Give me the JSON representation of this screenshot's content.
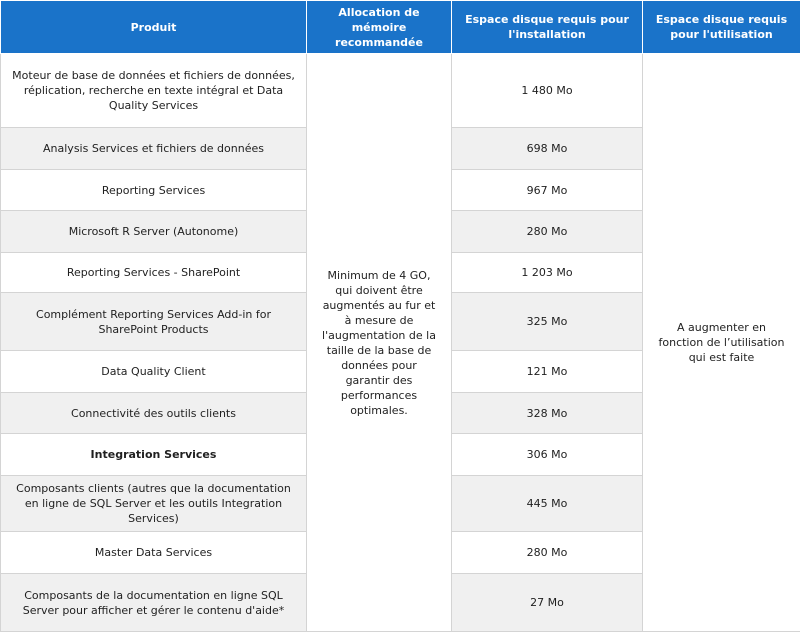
{
  "table": {
    "headers": [
      "Produit",
      "Allocation de mémoire recommandée",
      "Espace disque requis pour l'installation",
      "Espace disque requis pour l'utilisation"
    ],
    "memory_note": "Minimum de 4 GO, qui doivent être augmentés au fur et à mesure de l'augmentation de la taille de la base de données pour garantir des performances optimales.",
    "usage_note": "A augmenter en fonction de l’utilisation qui est faite",
    "rows": [
      {
        "product": "Moteur de base de données et fichiers de données, réplication, recherche en texte intégral et Data Quality Services",
        "install": "1 480 Mo"
      },
      {
        "product": "Analysis Services et fichiers de données",
        "install": "698 Mo"
      },
      {
        "product": "Reporting Services",
        "install": "967 Mo"
      },
      {
        "product": "Microsoft R Server (Autonome)",
        "install": "280 Mo"
      },
      {
        "product": "Reporting Services - SharePoint",
        "install": "1 203 Mo"
      },
      {
        "product": "Complément Reporting Services Add-in for SharePoint Products",
        "install": "325 Mo"
      },
      {
        "product": "Data Quality Client",
        "install": "121 Mo"
      },
      {
        "product": "Connectivité des outils clients",
        "install": "328 Mo"
      },
      {
        "product": "Integration Services",
        "install": "306 Mo"
      },
      {
        "product": "Composants clients (autres que la documentation en ligne de SQL Server et les outils Integration Services)",
        "install": "445 Mo"
      },
      {
        "product": "Master Data Services",
        "install": "280 Mo"
      },
      {
        "product": "Composants de la documentation en ligne SQL Server pour afficher et gérer le contenu d'aide*",
        "install": "27 Mo"
      }
    ]
  }
}
